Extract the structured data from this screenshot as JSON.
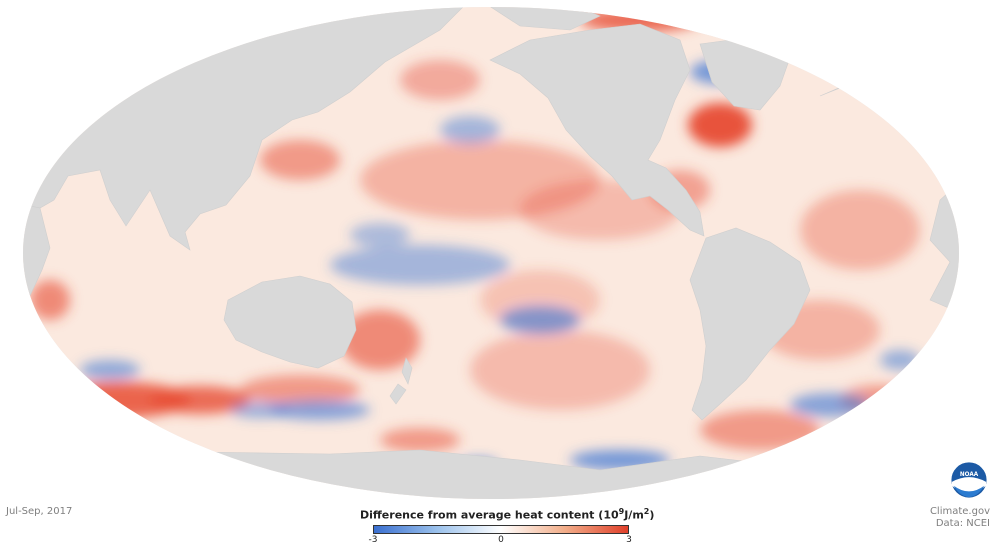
{
  "map": {
    "projection": "Mollweide (Pacific-centred)",
    "colors": {
      "land": "#d9d9d9",
      "outline": "#e3e3e3",
      "positive": "#e74c34",
      "negative": "#3a75d4",
      "neutral": "#ffffff"
    }
  },
  "date_label": "Jul-Sep, 2017",
  "legend": {
    "title": "Difference from average heat content",
    "unit_prefix": "(10",
    "unit_exp1": "9",
    "unit_mid": "J/m",
    "unit_exp2": "2",
    "unit_suffix": ")",
    "min_label": "-3",
    "mid_label": "0",
    "max_label": "3",
    "gradient": [
      "#3a6fd0",
      "#9cc2ec",
      "#ffffff",
      "#f2ae8a",
      "#e0402b"
    ]
  },
  "credits": {
    "site": "Climate.gov",
    "source": "Data: NCEI"
  },
  "logo": {
    "text": "NOAA"
  }
}
